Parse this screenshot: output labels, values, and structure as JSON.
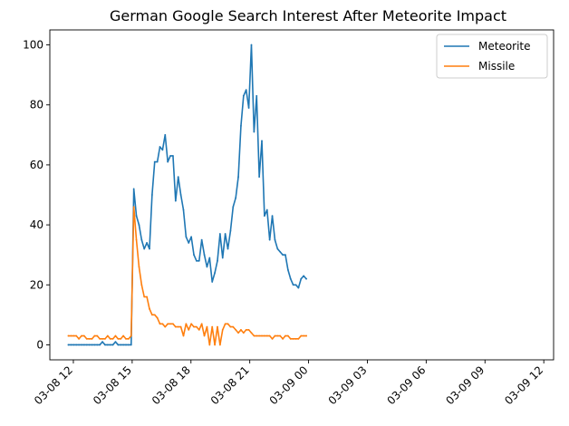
{
  "chart_data": {
    "type": "line",
    "title": "German Google Search Interest After Meteorite Impact",
    "xlabel": "",
    "ylabel": "",
    "x_start": "03-08 11:45",
    "x_step_minutes": 8,
    "xlim": [
      "03-08 10:48",
      "03-09 12:30"
    ],
    "ylim": [
      -5,
      105
    ],
    "x_ticks": [
      {
        "label": "03-08 12",
        "hour": 12
      },
      {
        "label": "03-08 15",
        "hour": 15
      },
      {
        "label": "03-08 18",
        "hour": 18
      },
      {
        "label": "03-08 21",
        "hour": 21
      },
      {
        "label": "03-09 00",
        "hour": 24
      },
      {
        "label": "03-09 03",
        "hour": 27
      },
      {
        "label": "03-09 06",
        "hour": 30
      },
      {
        "label": "03-09 09",
        "hour": 33
      },
      {
        "label": "03-09 12",
        "hour": 36
      }
    ],
    "y_ticks": [
      0,
      20,
      40,
      60,
      80,
      100
    ],
    "grid": false,
    "legend_position": "top-right",
    "series": [
      {
        "name": "Meteorite",
        "color": "#1f77b4",
        "values": [
          0,
          0,
          0,
          0,
          0,
          0,
          0,
          0,
          0,
          0,
          0,
          0,
          0,
          1,
          0,
          0,
          0,
          0,
          1,
          0,
          0,
          0,
          0,
          0,
          0,
          52,
          43,
          40,
          35,
          32,
          34,
          32,
          50,
          61,
          61,
          66,
          65,
          70,
          61,
          63,
          63,
          48,
          56,
          50,
          45,
          36,
          34,
          36,
          30,
          28,
          28,
          35,
          30,
          26,
          29,
          21,
          24,
          28,
          37,
          29,
          37,
          32,
          38,
          46,
          49,
          56,
          73,
          83,
          85,
          79,
          100,
          71,
          83,
          56,
          68,
          43,
          45,
          35,
          43,
          35,
          32,
          31,
          30,
          30,
          25,
          22,
          20,
          20,
          19,
          22,
          23,
          22
        ]
      },
      {
        "name": "Missile",
        "color": "#ff7f0e",
        "values": [
          3,
          3,
          3,
          3,
          2,
          3,
          3,
          2,
          2,
          2,
          3,
          3,
          2,
          2,
          2,
          3,
          2,
          2,
          3,
          2,
          2,
          3,
          2,
          2,
          3,
          46,
          35,
          26,
          20,
          16,
          16,
          12,
          10,
          10,
          9,
          7,
          7,
          6,
          7,
          7,
          7,
          6,
          6,
          6,
          3,
          7,
          5,
          7,
          6,
          6,
          5,
          7,
          3,
          6,
          0,
          6,
          0,
          6,
          0,
          5,
          7,
          7,
          6,
          6,
          5,
          4,
          5,
          4,
          5,
          5,
          4,
          3,
          3,
          3,
          3,
          3,
          3,
          3,
          2,
          3,
          3,
          3,
          2,
          3,
          3,
          2,
          2,
          2,
          2,
          3,
          3,
          3
        ]
      }
    ]
  }
}
